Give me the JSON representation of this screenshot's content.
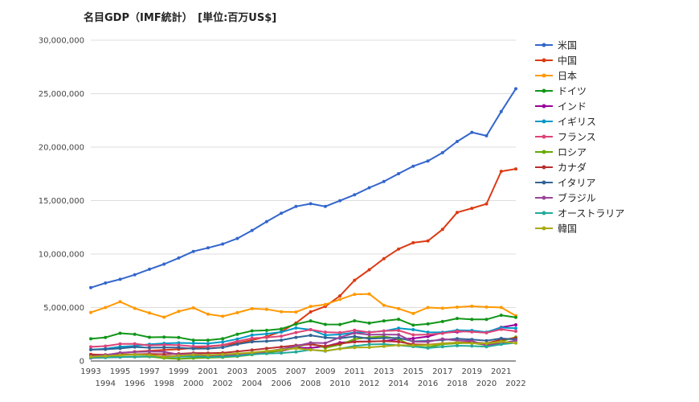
{
  "chart_data": {
    "type": "line",
    "title": "名目GDP（IMF統計）　[単位:百万US$]",
    "xlabel": "",
    "ylabel": "",
    "x": [
      "1993",
      "1994",
      "1995",
      "1996",
      "1997",
      "1998",
      "1999",
      "2000",
      "2001",
      "2002",
      "2003",
      "2004",
      "2005",
      "2006",
      "2007",
      "2008",
      "2009",
      "2010",
      "2011",
      "2012",
      "2013",
      "2014",
      "2015",
      "2016",
      "2017",
      "2018",
      "2019",
      "2020",
      "2021",
      "2022"
    ],
    "ylim": [
      0,
      30000000
    ],
    "yticks": [
      0,
      5000000,
      10000000,
      15000000,
      20000000,
      25000000,
      30000000
    ],
    "ytick_labels": [
      "0",
      "5,000,000",
      "10,000,000",
      "15,000,000",
      "20,000,000",
      "25,000,000",
      "30,000,000"
    ],
    "grid": true,
    "legend_position": "right",
    "series": [
      {
        "name": "米国",
        "color": "#3366cc",
        "values": [
          6860000,
          7290000,
          7640000,
          8070000,
          8580000,
          9060000,
          9630000,
          10250000,
          10580000,
          10940000,
          11460000,
          12210000,
          13040000,
          13810000,
          14450000,
          14710000,
          14450000,
          14990000,
          15540000,
          16200000,
          16780000,
          17520000,
          18220000,
          18710000,
          19480000,
          20530000,
          21380000,
          21060000,
          23320000,
          25460000
        ]
      },
      {
        "name": "中国",
        "color": "#dc3912",
        "values": [
          613000,
          564000,
          734000,
          863000,
          961000,
          1029000,
          1094000,
          1211000,
          1339000,
          1471000,
          1660000,
          1955000,
          2286000,
          2752000,
          3550000,
          4594000,
          5102000,
          6087000,
          7552000,
          8532000,
          9570000,
          10476000,
          11062000,
          11233000,
          12311000,
          13895000,
          14280000,
          14688000,
          17734000,
          17963000
        ]
      },
      {
        "name": "日本",
        "color": "#ff9900",
        "values": [
          4540000,
          4998000,
          5545000,
          4923000,
          4492000,
          4098000,
          4636000,
          4968000,
          4375000,
          4182000,
          4520000,
          4893000,
          4831000,
          4601000,
          4580000,
          5106000,
          5289000,
          5759000,
          6233000,
          6272000,
          5212000,
          4897000,
          4444000,
          5003000,
          4930000,
          5040000,
          5118000,
          5048000,
          5006000,
          4232000
        ]
      },
      {
        "name": "ドイツ",
        "color": "#109618",
        "values": [
          2075000,
          2205000,
          2592000,
          2505000,
          2218000,
          2243000,
          2200000,
          1950000,
          1945000,
          2079000,
          2505000,
          2819000,
          2861000,
          3002000,
          3440000,
          3752000,
          3418000,
          3417000,
          3757000,
          3544000,
          3753000,
          3899000,
          3357000,
          3469000,
          3690000,
          3977000,
          3889000,
          3887000,
          4278000,
          4082000
        ]
      },
      {
        "name": "インド",
        "color": "#990099",
        "values": [
          284000,
          333000,
          366000,
          399000,
          423000,
          428000,
          466000,
          476000,
          494000,
          524000,
          618000,
          721000,
          834000,
          949000,
          1238000,
          1224000,
          1365000,
          1708000,
          1823000,
          1828000,
          1856000,
          2039000,
          2103000,
          2295000,
          2652000,
          2713000,
          2835000,
          2671000,
          3150000,
          3385000
        ]
      },
      {
        "name": "イギリス",
        "color": "#0099c6",
        "values": [
          1060000,
          1140000,
          1340000,
          1410000,
          1560000,
          1650000,
          1690000,
          1660000,
          1640000,
          1780000,
          2050000,
          2420000,
          2540000,
          2710000,
          3090000,
          2930000,
          2410000,
          2480000,
          2660000,
          2700000,
          2790000,
          3070000,
          2930000,
          2690000,
          2680000,
          2870000,
          2850000,
          2700000,
          3120000,
          3070000
        ]
      },
      {
        "name": "フランス",
        "color": "#dd4477",
        "values": [
          1320000,
          1390000,
          1600000,
          1610000,
          1460000,
          1510000,
          1490000,
          1360000,
          1380000,
          1500000,
          1840000,
          2120000,
          2200000,
          2320000,
          2660000,
          2930000,
          2700000,
          2650000,
          2870000,
          2680000,
          2810000,
          2860000,
          2440000,
          2470000,
          2590000,
          2790000,
          2730000,
          2640000,
          2960000,
          2780000
        ]
      },
      {
        "name": "ロシア",
        "color": "#66aa00",
        "values": [
          435000,
          395000,
          396000,
          392000,
          405000,
          271000,
          196000,
          260000,
          307000,
          345000,
          430000,
          591000,
          764000,
          990000,
          1300000,
          1661000,
          1223000,
          1525000,
          2046000,
          2208000,
          2292000,
          2060000,
          1363000,
          1277000,
          1574000,
          1657000,
          1693000,
          1489000,
          1836000,
          2240000
        ]
      },
      {
        "name": "カナダ",
        "color": "#b82e2e",
        "values": [
          577000,
          579000,
          605000,
          631000,
          654000,
          634000,
          678000,
          744000,
          739000,
          760000,
          895000,
          1026000,
          1174000,
          1319000,
          1468000,
          1552000,
          1376000,
          1617000,
          1793000,
          1828000,
          1847000,
          1805000,
          1556000,
          1528000,
          1650000,
          1725000,
          1743000,
          1648000,
          2001000,
          2140000
        ]
      },
      {
        "name": "イタリア",
        "color": "#316395",
        "values": [
          1060000,
          1090000,
          1170000,
          1310000,
          1240000,
          1270000,
          1250000,
          1140000,
          1160000,
          1270000,
          1570000,
          1800000,
          1850000,
          1950000,
          2210000,
          2400000,
          2190000,
          2130000,
          2290000,
          2090000,
          2140000,
          2160000,
          1840000,
          1880000,
          1960000,
          2090000,
          2010000,
          1900000,
          2110000,
          2010000
        ]
      },
      {
        "name": "ブラジル",
        "color": "#994499",
        "values": [
          438000,
          546000,
          770000,
          850000,
          883000,
          864000,
          599000,
          655000,
          559000,
          508000,
          558000,
          669000,
          891000,
          1107000,
          1397000,
          1696000,
          1667000,
          2209000,
          2616000,
          2465000,
          2473000,
          2456000,
          1802000,
          1797000,
          2063000,
          1917000,
          1873000,
          1448000,
          1649000,
          1920000
        ]
      },
      {
        "name": "オーストラリア",
        "color": "#22aa99",
        "values": [
          310000,
          321000,
          367000,
          400000,
          435000,
          399000,
          389000,
          415000,
          378000,
          395000,
          467000,
          614000,
          693000,
          747000,
          853000,
          1055000,
          928000,
          1148000,
          1398000,
          1547000,
          1577000,
          1468000,
          1351000,
          1208000,
          1330000,
          1427000,
          1395000,
          1330000,
          1553000,
          1702000
        ]
      },
      {
        "name": "韓国",
        "color": "#aaaa11",
        "values": [
          392000,
          455000,
          556000,
          603000,
          561000,
          383000,
          497000,
          576000,
          547000,
          627000,
          702000,
          793000,
          934000,
          1053000,
          1172000,
          1047000,
          944000,
          1144000,
          1253000,
          1278000,
          1370000,
          1484000,
          1466000,
          1500000,
          1623000,
          1725000,
          1651000,
          1644000,
          1818000,
          1674000
        ]
      }
    ]
  }
}
